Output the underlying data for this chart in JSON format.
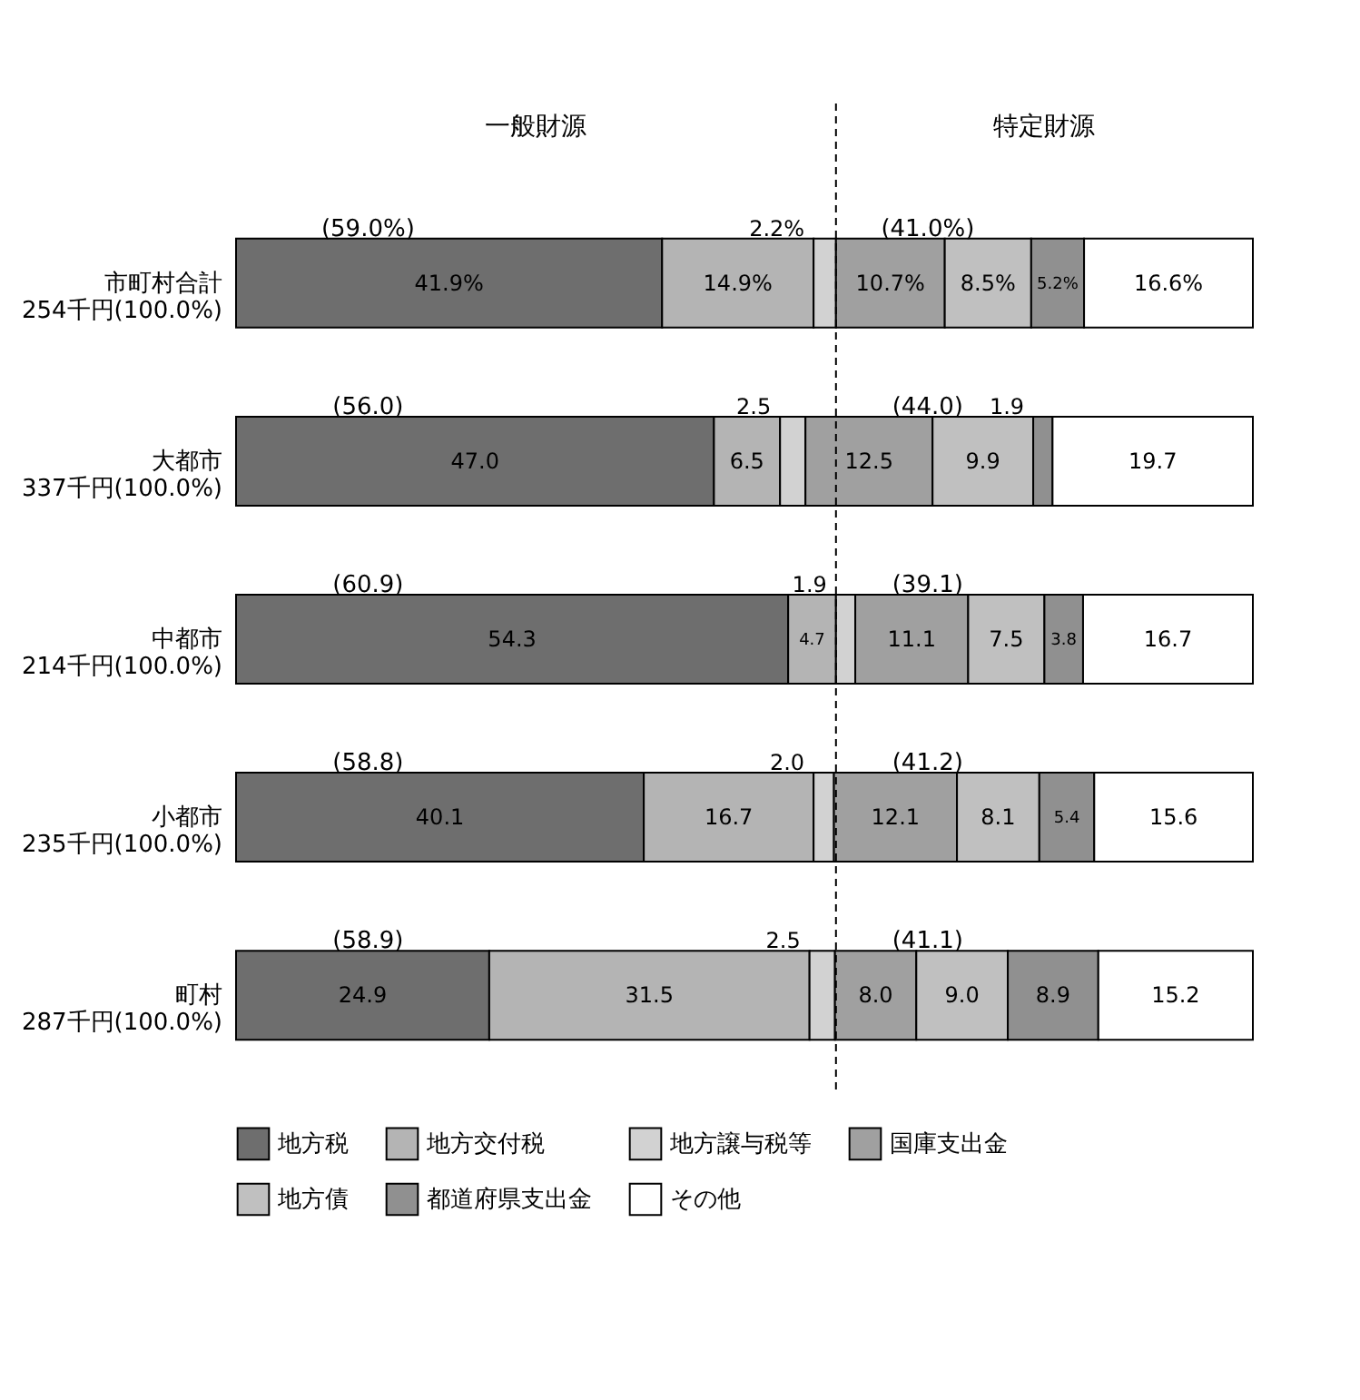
{
  "chart_data": {
    "type": "bar",
    "orientation": "horizontal",
    "stacked": true,
    "categories": [
      "市町村合計 254千円(100.0%)",
      "大都市 337千円(100.0%)",
      "中都市 214千円(100.0%)",
      "小都市 235千円(100.0%)",
      "町村 287千円(100.0%)"
    ],
    "series": [
      {
        "name": "地方税",
        "color": "#6e6e6e",
        "values": [
          41.9,
          47.0,
          54.3,
          40.1,
          24.9
        ],
        "value_labels": [
          "41.9%",
          "47.0",
          "54.3",
          "40.1",
          "24.9"
        ]
      },
      {
        "name": "地方交付税",
        "color": "#b4b4b4",
        "values": [
          14.9,
          6.5,
          4.7,
          16.7,
          31.5
        ],
        "value_labels": [
          "14.9%",
          "6.5",
          "4.7",
          "16.7",
          "31.5"
        ]
      },
      {
        "name": "地方譲与税等",
        "color": "#d2d2d2",
        "values": [
          2.2,
          2.5,
          1.9,
          2.0,
          2.5
        ],
        "value_labels": [
          "2.2%",
          "2.5",
          "1.9",
          "2.0",
          "2.5"
        ]
      },
      {
        "name": "国庫支出金",
        "color": "#a0a0a0",
        "values": [
          10.7,
          12.5,
          11.1,
          12.1,
          8.0
        ],
        "value_labels": [
          "10.7%",
          "12.5",
          "11.1",
          "12.1",
          "8.0"
        ]
      },
      {
        "name": "地方債",
        "color": "#c0c0c0",
        "values": [
          8.5,
          9.9,
          7.5,
          8.1,
          9.0
        ],
        "value_labels": [
          "8.5%",
          "9.9",
          "7.5",
          "8.1",
          "9.0"
        ]
      },
      {
        "name": "都道府県支出金",
        "color": "#909090",
        "values": [
          5.2,
          1.9,
          3.8,
          5.4,
          8.9
        ],
        "value_labels": [
          "5.2%",
          "1.9",
          "3.8",
          "5.4",
          "8.9"
        ]
      },
      {
        "name": "その他",
        "color": "#ffffff",
        "values": [
          16.6,
          19.7,
          16.7,
          15.6,
          15.2
        ],
        "value_labels": [
          "16.6%",
          "19.7",
          "16.7",
          "15.6",
          "15.2"
        ]
      }
    ],
    "xlim": [
      0,
      100
    ],
    "tick_labels": "y",
    "legend": "bottom",
    "ref_lines": [
      {
        "axis": "x",
        "value": 59,
        "line_style": "dashed"
      }
    ],
    "annotations": [
      "一般財源",
      "特定財源",
      "(59.0%)",
      "(41.0%)",
      "(56.0)",
      "(44.0)",
      "(60.9)",
      "(39.1)",
      "(58.8)",
      "(41.2)",
      "(58.9)",
      "(41.1)"
    ]
  }
}
